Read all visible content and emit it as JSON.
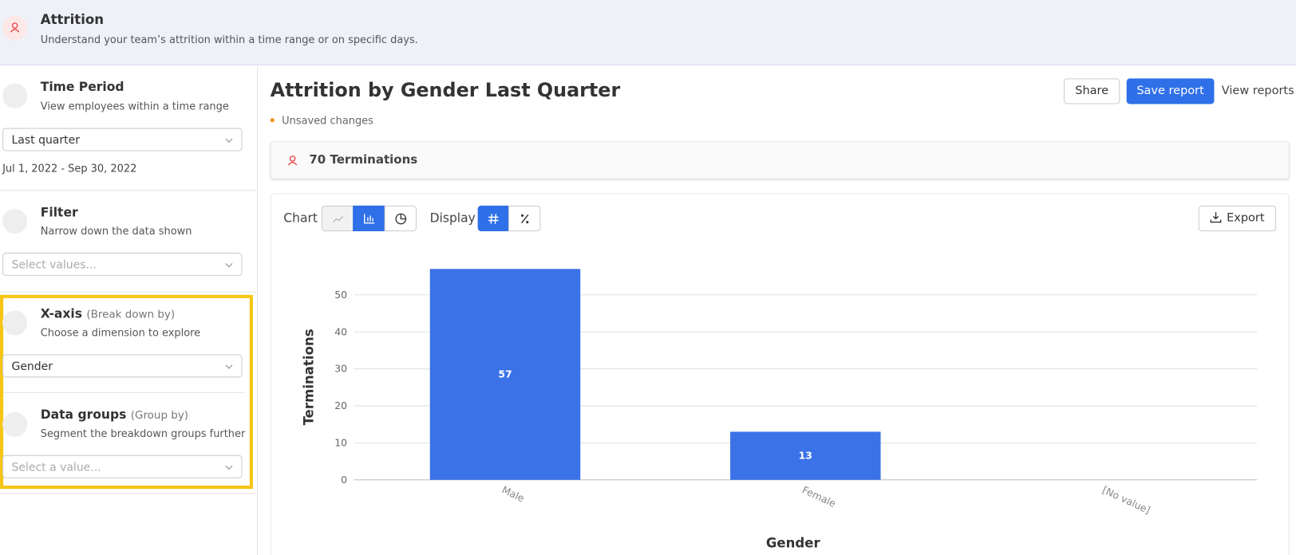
{
  "header": {
    "title": "Attrition",
    "subtitle": "Understand your team’s attrition within a time range or on specific days."
  },
  "sidebar": {
    "time_period": {
      "title": "Time Period",
      "subtitle": "View employees within a time range",
      "value": "Last quarter",
      "range": "Jul 1, 2022 - Sep 30, 2022"
    },
    "filter": {
      "title": "Filter",
      "subtitle": "Narrow down the data shown",
      "placeholder": "Select values..."
    },
    "x_axis": {
      "title": "X-axis",
      "hint": "(Break down by)",
      "subtitle": "Choose a dimension to explore",
      "value": "Gender"
    },
    "data_groups": {
      "title": "Data groups",
      "hint": "(Group by)",
      "subtitle": "Segment the breakdown groups further",
      "placeholder": "Select a value..."
    }
  },
  "report": {
    "title": "Attrition by Gender Last Quarter",
    "status": "Unsaved changes",
    "share": "Share",
    "save": "Save report",
    "view": "View reports",
    "summary": "70 Terminations",
    "chart_label": "Chart",
    "display_label": "Display",
    "export": "Export"
  },
  "chart_data": {
    "type": "bar",
    "categories": [
      "Male",
      "Female",
      "[No value]"
    ],
    "values": [
      57,
      13,
      0
    ],
    "color": "#3b72e8",
    "ylim": [
      0,
      60
    ],
    "yticks": [
      0,
      10,
      20,
      30,
      40,
      50
    ],
    "grid": true,
    "x_label": "Gender",
    "y_label": "Terminations"
  }
}
